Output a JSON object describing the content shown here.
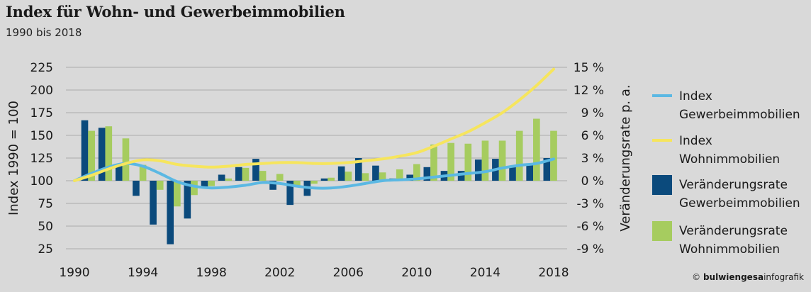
{
  "title": "Index für Wohn- und Gewerbeimmobilien",
  "subtitle": "1990 bis 2018",
  "credit": {
    "copyright": "©",
    "brand": "bulwiengesa",
    "suffix": "infografik"
  },
  "colors": {
    "background": "#d9d9d9",
    "index_gewerbe": "#5bb8e3",
    "index_wohn": "#f6e55d",
    "rate_gewerbe": "#0b4a7c",
    "rate_wohn": "#a6cc5f",
    "grid": "#aaaaaa"
  },
  "chart_data": {
    "type": "bar",
    "combo": "bars + lines",
    "x_ticks": [
      "1990",
      "1994",
      "1998",
      "2002",
      "2006",
      "2010",
      "2014",
      "2018"
    ],
    "x_range": [
      1990,
      2018
    ],
    "y_left": {
      "label": "Index 1990 = 100",
      "ticks": [
        "225",
        "200",
        "175",
        "150",
        "125",
        "100",
        "75",
        "50",
        "25"
      ],
      "range": [
        25,
        225
      ]
    },
    "y_right": {
      "label": "Veränderungsrate p. a.",
      "ticks": [
        "15 %",
        "12 %",
        "9 %",
        "6 %",
        "3 %",
        "0 %",
        "-3 %",
        "-6 %",
        "-9 %"
      ],
      "range": [
        -9,
        15
      ]
    },
    "years": [
      1991,
      1992,
      1993,
      1994,
      1995,
      1996,
      1997,
      1998,
      1999,
      2000,
      2001,
      2002,
      2003,
      2004,
      2005,
      2006,
      2007,
      2008,
      2009,
      2010,
      2011,
      2012,
      2013,
      2014,
      2015,
      2016,
      2017,
      2018
    ],
    "series": [
      {
        "name": "Index Gewerbeimmobilien",
        "kind": "line",
        "axis": "left",
        "x": [
          1990,
          1991,
          1992,
          1993,
          1994,
          1995,
          1996,
          1997,
          1998,
          1999,
          2000,
          2001,
          2002,
          2003,
          2004,
          2005,
          2006,
          2007,
          2008,
          2009,
          2010,
          2011,
          2012,
          2013,
          2014,
          2015,
          2016,
          2017,
          2018
        ],
        "values": [
          100,
          108,
          115,
          119,
          116,
          108,
          99,
          94,
          92,
          93,
          95,
          98,
          97,
          94,
          92,
          92,
          94,
          97,
          100,
          101,
          102,
          104,
          106,
          108,
          110,
          114,
          117,
          119,
          124
        ]
      },
      {
        "name": "Index Wohnimmobilien",
        "kind": "line",
        "axis": "left",
        "x": [
          1990,
          1991,
          1992,
          1993,
          1994,
          1995,
          1996,
          1997,
          1998,
          1999,
          2000,
          2001,
          2002,
          2003,
          2004,
          2005,
          2006,
          2007,
          2008,
          2009,
          2010,
          2011,
          2012,
          2013,
          2014,
          2015,
          2016,
          2017,
          2018
        ],
        "values": [
          100,
          106,
          113,
          119,
          123,
          122,
          118,
          116,
          115,
          116,
          118,
          119,
          120,
          120,
          119,
          119,
          120,
          122,
          124,
          127,
          131,
          138,
          146,
          154,
          164,
          175,
          189,
          205,
          223
        ]
      },
      {
        "name": "Veränderungsrate Gewerbeimmobilien",
        "kind": "bar",
        "axis": "right",
        "values": [
          8.0,
          7.0,
          2.2,
          -2.0,
          -5.8,
          -8.4,
          -5.0,
          -1.0,
          0.8,
          1.8,
          2.9,
          -1.2,
          -3.2,
          -2.0,
          0.3,
          1.9,
          3.0,
          2.0,
          0.3,
          0.8,
          1.8,
          1.3,
          1.3,
          2.8,
          2.9,
          2.0,
          2.2,
          3.0
        ]
      },
      {
        "name": "Veränderungsrate Wohnimmobilien",
        "kind": "bar",
        "axis": "right",
        "values": [
          6.6,
          7.2,
          5.6,
          2.1,
          -1.2,
          -3.4,
          -1.9,
          -0.7,
          0.3,
          1.7,
          1.3,
          0.9,
          -0.6,
          -0.4,
          0.4,
          1.2,
          1.0,
          1.1,
          1.5,
          2.2,
          4.8,
          5.0,
          4.9,
          5.3,
          5.3,
          6.6,
          8.2,
          6.6
        ]
      }
    ],
    "legend": {
      "placement": "right",
      "entries": [
        {
          "line1": "Index",
          "line2": "Gewerbeimmobilien"
        },
        {
          "line1": "Index",
          "line2": "Wohnimmobilien"
        },
        {
          "line1": "Veränderungsrate",
          "line2": "Gewerbeimmobilien"
        },
        {
          "line1": "Veränderungsrate",
          "line2": "Wohnimmobilien"
        }
      ]
    },
    "grid": "horizontal-left-ticks-only"
  }
}
